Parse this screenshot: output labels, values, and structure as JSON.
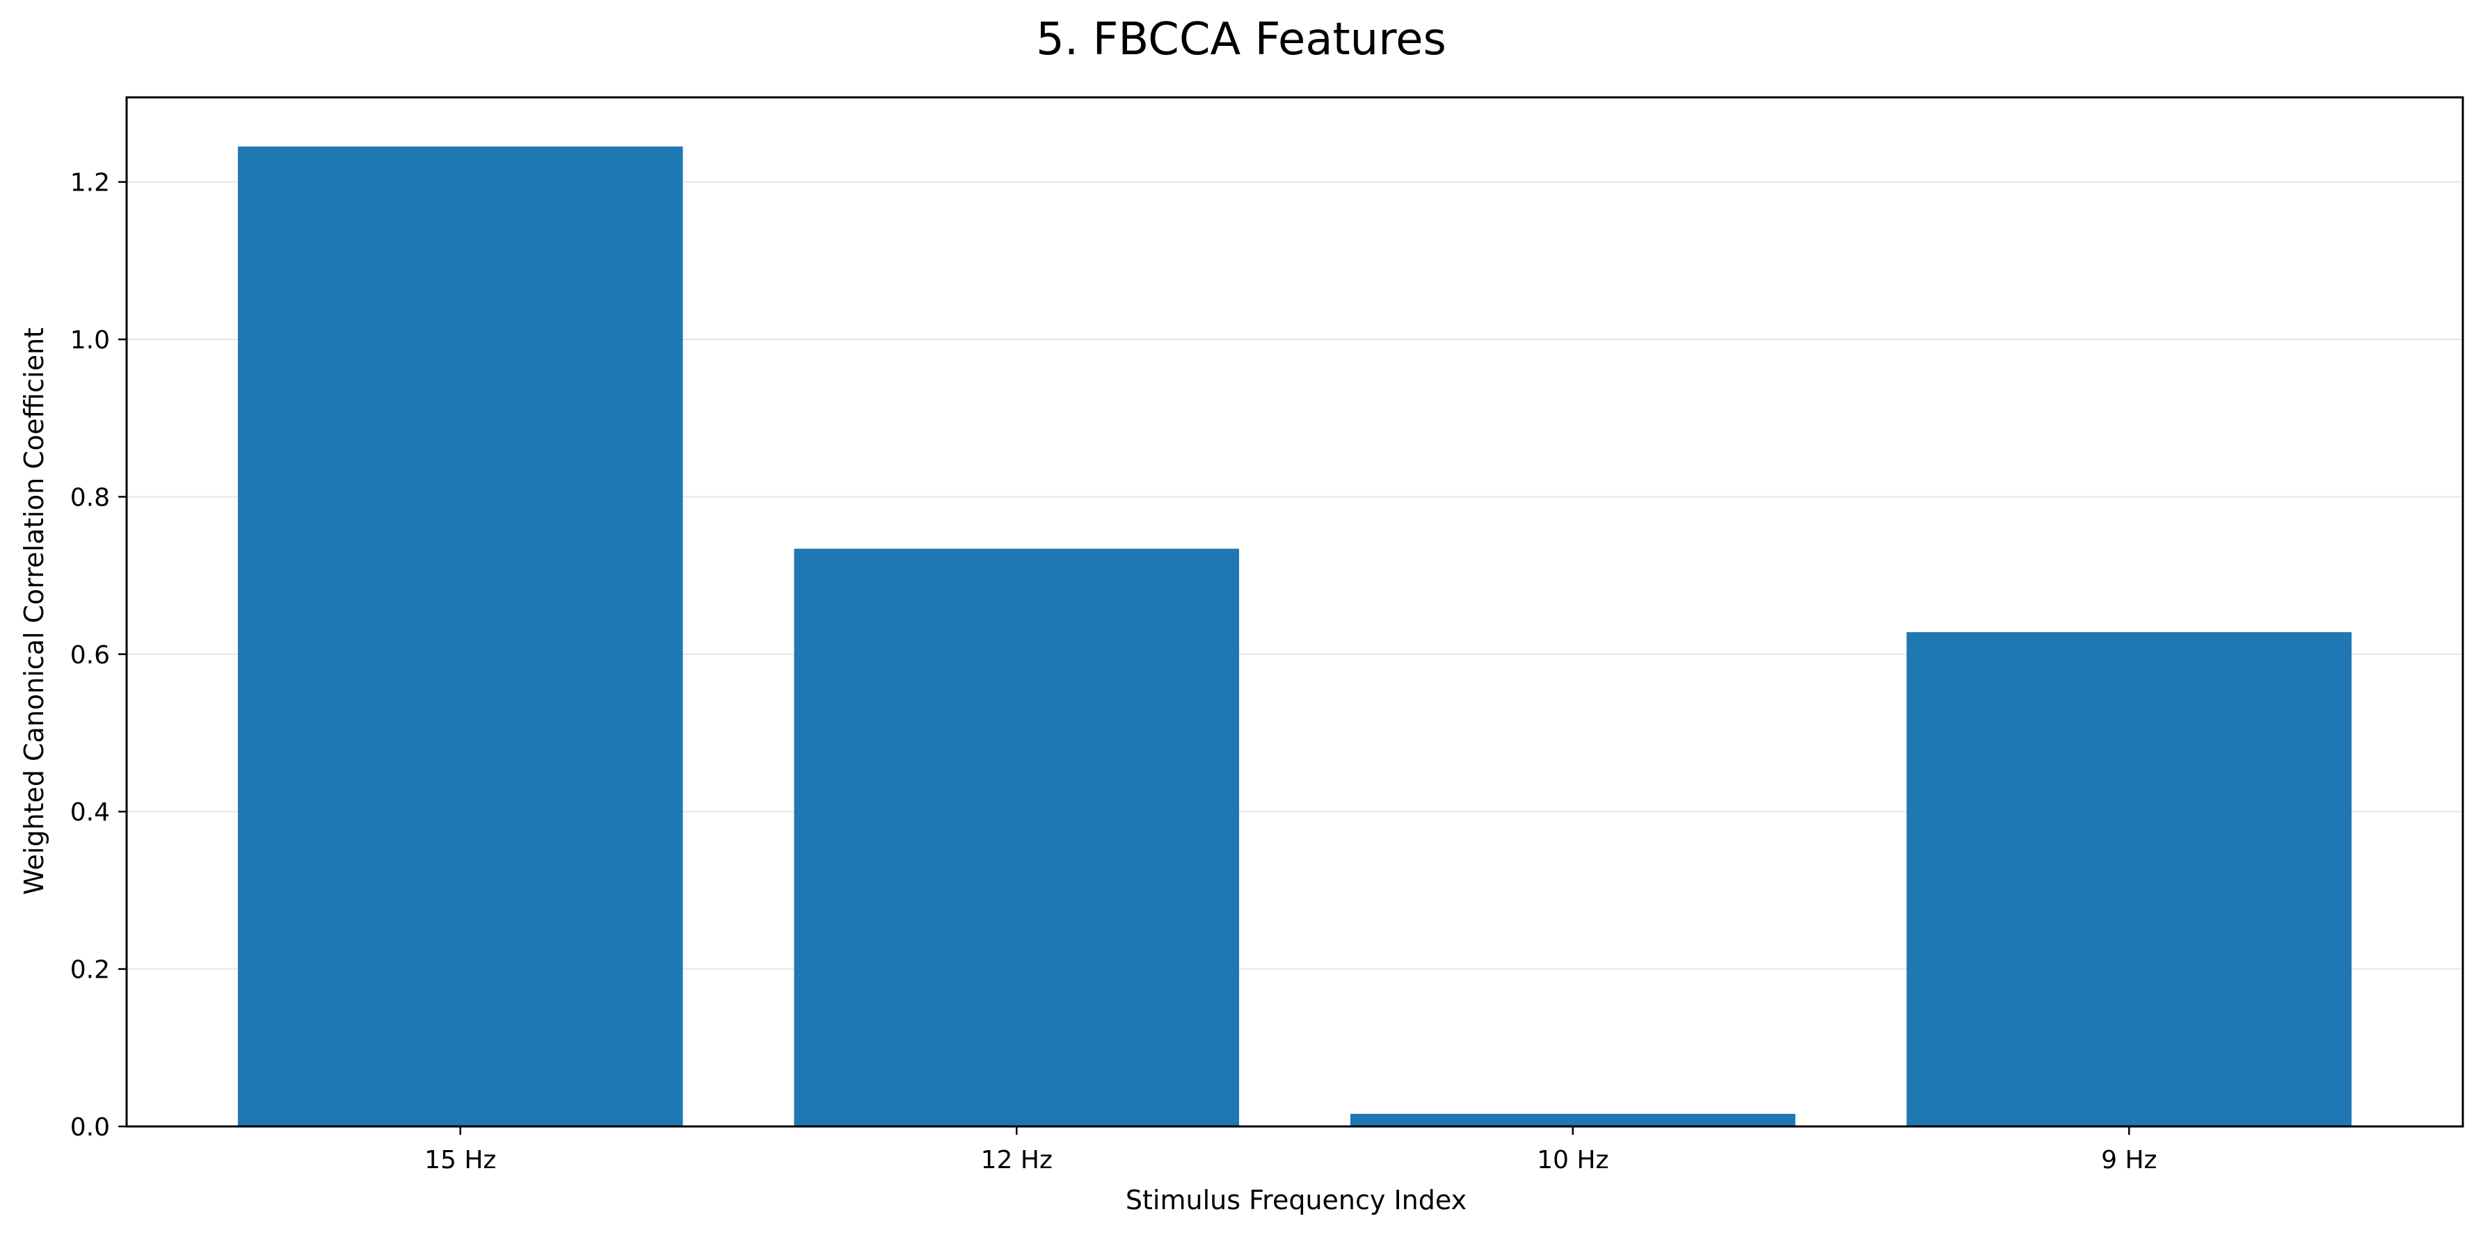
{
  "chart_data": {
    "type": "bar",
    "title": "5. FBCCA Features",
    "xlabel": "Stimulus Frequency Index",
    "ylabel": "Weighted Canonical Correlation Coefficient",
    "categories": [
      "15 Hz",
      "12 Hz",
      "10 Hz",
      "9 Hz"
    ],
    "values": [
      1.245,
      0.734,
      0.016,
      0.628
    ],
    "ylim": [
      0,
      1.3075
    ],
    "yticks": [
      "0.0",
      "0.2",
      "0.4",
      "0.6",
      "0.8",
      "1.0",
      "1.2"
    ],
    "grid": "horizontal",
    "bar_color": "#1f77b4",
    "grid_color": "#e5e5e5"
  }
}
